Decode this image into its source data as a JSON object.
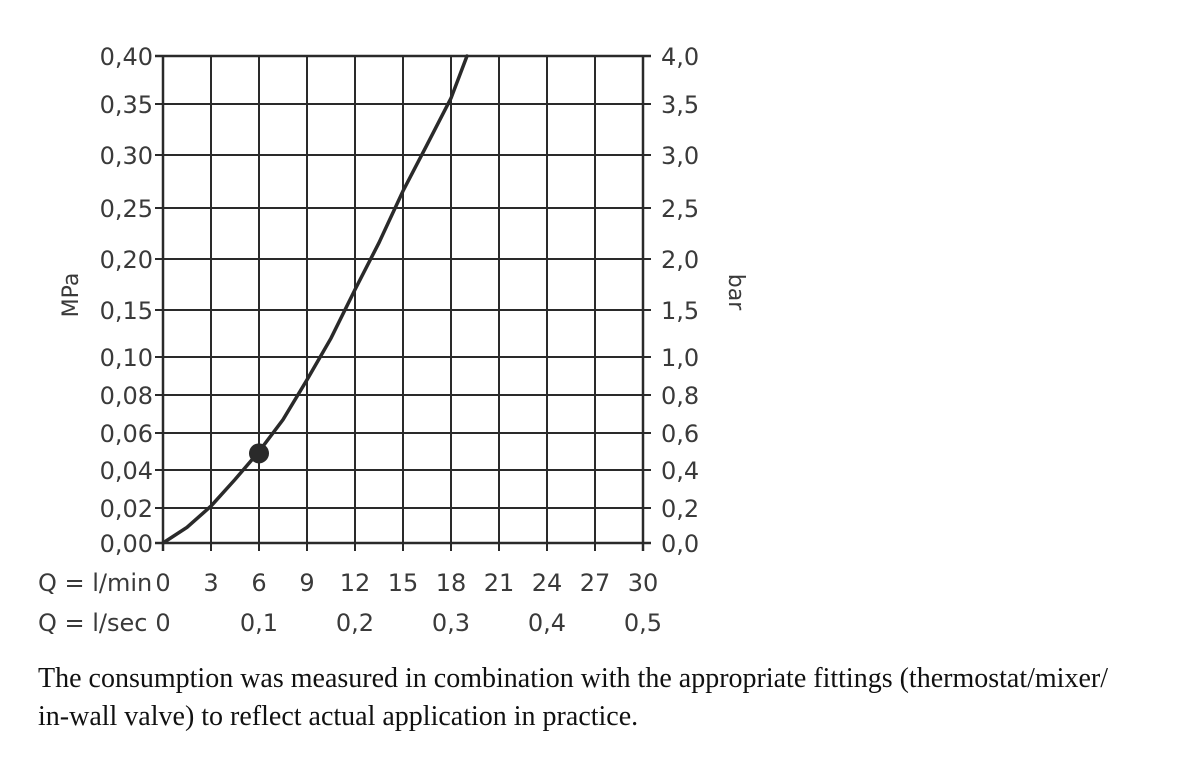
{
  "chart_data": {
    "type": "line",
    "left_axis_unit": "MPa",
    "right_axis_unit": "bar",
    "left_tick_labels": [
      "0,00",
      "0,02",
      "0,04",
      "0,06",
      "0,08",
      "0,10",
      "0,15",
      "0,20",
      "0,25",
      "0,30",
      "0,35",
      "0,40"
    ],
    "right_tick_labels": [
      "0,0",
      "0,2",
      "0,4",
      "0,6",
      "0,8",
      "1,0",
      "1,5",
      "2,0",
      "2,5",
      "3,0",
      "3,5",
      "4,0"
    ],
    "x_row1_label": "Q = l/min",
    "x_row1_ticks": [
      "0",
      "3",
      "6",
      "9",
      "12",
      "15",
      "18",
      "21",
      "24",
      "27",
      "30"
    ],
    "x_row2_label": "Q = l/sec",
    "x_row2_ticks": [
      "0",
      "0,1",
      "0,2",
      "0,3",
      "0,4",
      "0,5"
    ],
    "xlim": [
      0,
      30
    ],
    "ylim_mpa": [
      0,
      0.4
    ],
    "grid": true,
    "series": [
      {
        "x_lpm": [
          0,
          1.5,
          3,
          4.5,
          6,
          7.5,
          9,
          10.5,
          12,
          13.5,
          15,
          16.5,
          18,
          19
        ],
        "y_mpa": [
          0,
          0.009,
          0.021,
          0.035,
          0.05,
          0.067,
          0.088,
          0.12,
          0.17,
          0.216,
          0.266,
          0.31,
          0.356,
          0.4
        ]
      }
    ],
    "marker": {
      "x_lpm": 6,
      "y_mpa": 0.049
    }
  },
  "caption": {
    "line1": "The consumption was measured in combination with the appropriate fittings (thermostat/mixer/",
    "line2": "in-wall valve) to reflect actual application in practice."
  }
}
